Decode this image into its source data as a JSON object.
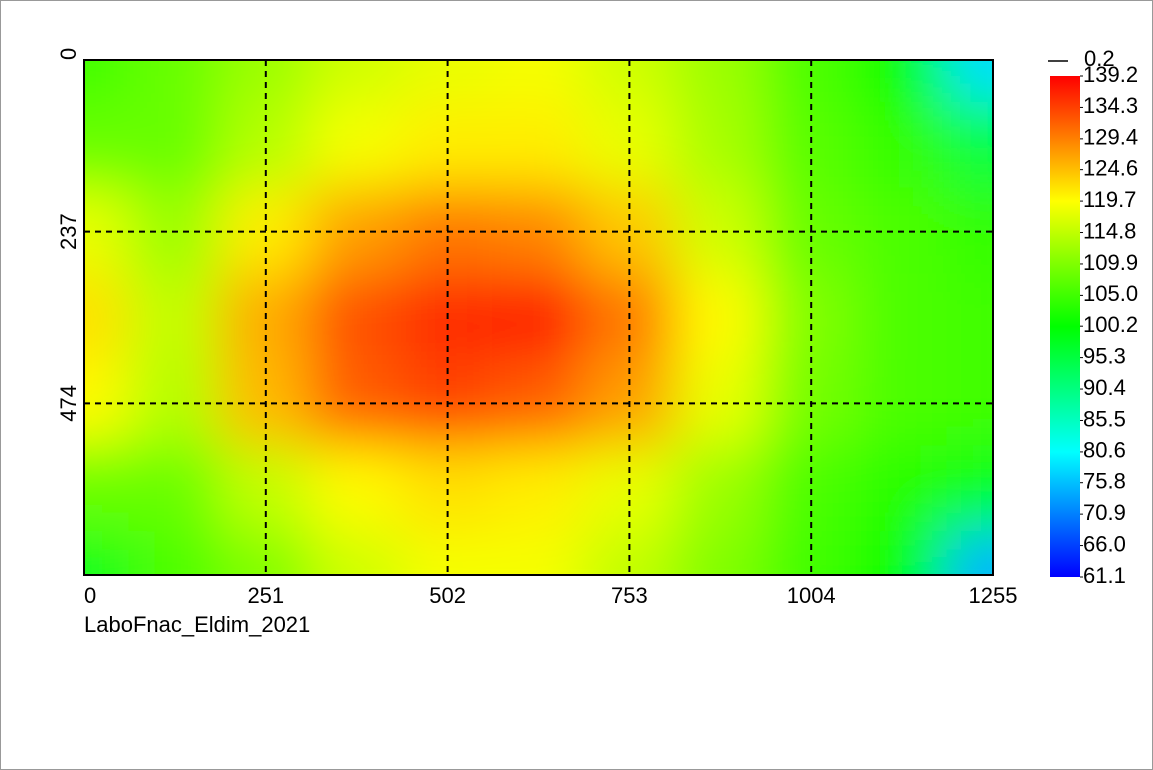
{
  "chart_data": {
    "type": "heatmap",
    "caption": "LaboFnac_Eldim_2021",
    "x": [
      0,
      125.5,
      251,
      376.5,
      502,
      627.5,
      753,
      878.5,
      1004,
      1129.5,
      1255
    ],
    "y": [
      0,
      118.5,
      237,
      355.5,
      474,
      592.5,
      711
    ],
    "z": [
      [
        105,
        108,
        112,
        116,
        118,
        119,
        116,
        112,
        106,
        100,
        78
      ],
      [
        108,
        108,
        114,
        119,
        121,
        121,
        118,
        113,
        107,
        104,
        95
      ],
      [
        118,
        112,
        121,
        127,
        130,
        129,
        124,
        116,
        108,
        106,
        104
      ],
      [
        122,
        115,
        126,
        133,
        136,
        137,
        130,
        120,
        110,
        106,
        105
      ],
      [
        120,
        114,
        125,
        132,
        134,
        132,
        127,
        118,
        109,
        106,
        105
      ],
      [
        108,
        108,
        115,
        120,
        122,
        121,
        118,
        112,
        106,
        103,
        98
      ],
      [
        98,
        106,
        110,
        116,
        119,
        119,
        115,
        110,
        105,
        100,
        75
      ]
    ],
    "xlim": [
      0,
      1255
    ],
    "ylim": [
      0,
      711
    ],
    "y_inverted": true,
    "xticks": [
      0,
      251,
      502,
      753,
      1004,
      1255
    ],
    "yticks": [
      0,
      237,
      474
    ],
    "grid": true,
    "colormap": [
      "#0000ff",
      "#00ffff",
      "#00ff00",
      "#ffff00",
      "#ff0000"
    ],
    "colorlim": [
      61.1,
      139.2
    ],
    "colorbar_ticks": [
      139.2,
      134.3,
      129.4,
      124.6,
      119.7,
      114.8,
      109.9,
      {
        "value": 105,
        "label": "105.0"
      },
      100.2,
      95.3,
      90.4,
      85.5,
      80.6,
      75.8,
      70.9,
      {
        "value": 66,
        "label": "66.0"
      },
      61.1
    ],
    "line_legend": 0.2
  }
}
